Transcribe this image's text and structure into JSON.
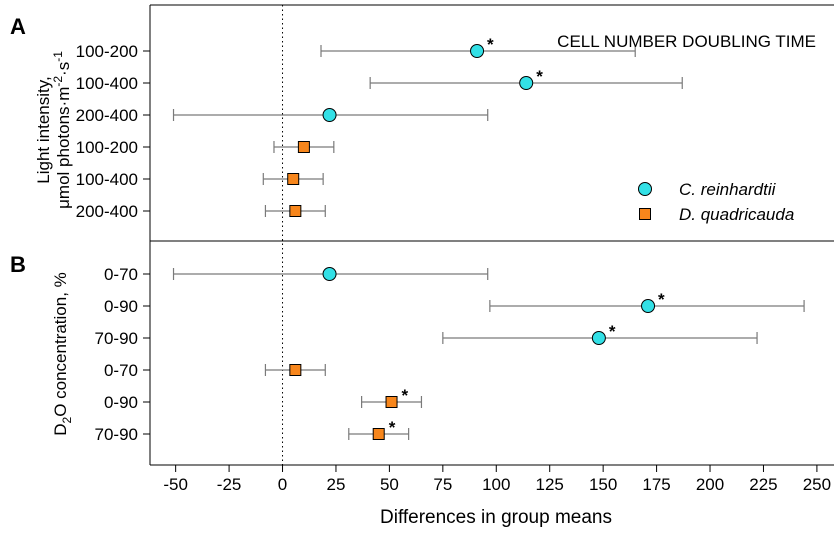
{
  "chart_data": {
    "type": "scatter",
    "title": "CELL NUMBER DOUBLING TIME",
    "xlabel": "Differences in group means",
    "xlim": [
      -62,
      258
    ],
    "xticks": [
      -50,
      -25,
      0,
      25,
      50,
      75,
      100,
      125,
      150,
      175,
      200,
      225,
      250
    ],
    "legend": {
      "placement": "right",
      "entries": [
        {
          "label": "C. reinhardtii",
          "marker": "circle",
          "color": "#33e0e6"
        },
        {
          "label": "D. quadricauda",
          "marker": "square",
          "color": "#f7861c"
        }
      ]
    },
    "panels": [
      {
        "label": "A",
        "ylabel_line1": "Light intensity,",
        "ylabel_line2": "μmol photons·m",
        "ylabel_sup1": "-2",
        "ylabel_mid": "·s",
        "ylabel_sup2": "-1",
        "rows": [
          {
            "label": "100-200",
            "species": "C. reinhardtii",
            "mean": 91,
            "low": 18,
            "high": 165,
            "significant": true
          },
          {
            "label": "100-400",
            "species": "C. reinhardtii",
            "mean": 114,
            "low": 41,
            "high": 187,
            "significant": true
          },
          {
            "label": "200-400",
            "species": "C. reinhardtii",
            "mean": 22,
            "low": -51,
            "high": 96,
            "significant": false
          },
          {
            "label": "100-200",
            "species": "D. quadricauda",
            "mean": 10,
            "low": -4,
            "high": 24,
            "significant": false
          },
          {
            "label": "100-400",
            "species": "D. quadricauda",
            "mean": 5,
            "low": -9,
            "high": 19,
            "significant": false
          },
          {
            "label": "200-400",
            "species": "D. quadricauda",
            "mean": 6,
            "low": -8,
            "high": 20,
            "significant": false
          }
        ]
      },
      {
        "label": "B",
        "ylabel_pre": "D",
        "ylabel_sub": "2",
        "ylabel_post": "O concentration, %",
        "rows": [
          {
            "label": "0-70",
            "species": "C. reinhardtii",
            "mean": 22,
            "low": -51,
            "high": 96,
            "significant": false
          },
          {
            "label": "0-90",
            "species": "C. reinhardtii",
            "mean": 171,
            "low": 97,
            "high": 244,
            "significant": true
          },
          {
            "label": "70-90",
            "species": "C. reinhardtii",
            "mean": 148,
            "low": 75,
            "high": 222,
            "significant": true
          },
          {
            "label": "0-70",
            "species": "D. quadricauda",
            "mean": 6,
            "low": -8,
            "high": 20,
            "significant": false
          },
          {
            "label": "0-90",
            "species": "D. quadricauda",
            "mean": 51,
            "low": 37,
            "high": 65,
            "significant": true
          },
          {
            "label": "70-90",
            "species": "D. quadricauda",
            "mean": 45,
            "low": 31,
            "high": 59,
            "significant": true
          }
        ]
      }
    ],
    "significance_marker": "*",
    "zero_reference_line": "dotted"
  }
}
